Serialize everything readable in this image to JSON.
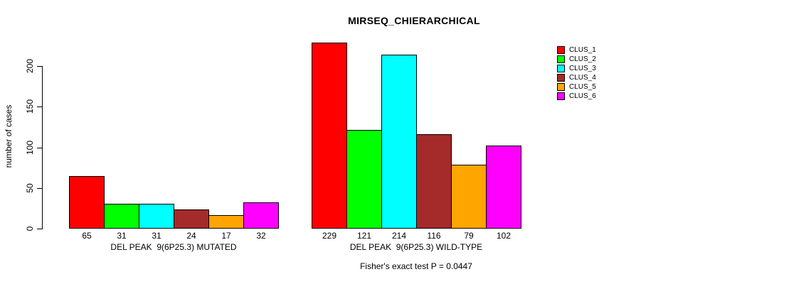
{
  "title": "MIRSEQ_CHIERARCHICAL",
  "colors": {
    "background": "#FFFFFF",
    "axis": "#000000",
    "clus_1": "#FF0000",
    "clus_2": "#00FF00",
    "clus_3": "#00FFFF",
    "clus_4": "#A52A2A",
    "clus_5": "#FFA500",
    "clus_6": "#FF00FF"
  },
  "chart_data": {
    "type": "bar",
    "title": "MIRSEQ_CHIERARCHICAL",
    "xlabel": "",
    "ylabel": "number of cases",
    "ylim": [
      0,
      230
    ],
    "yticks": [
      0,
      50,
      100,
      150,
      200
    ],
    "grid": false,
    "legend_position": "right-outside-top",
    "bar_value_labels_shown": true,
    "series": [
      {
        "name": "CLUS_1",
        "color": "#FF0000"
      },
      {
        "name": "CLUS_2",
        "color": "#00FF00"
      },
      {
        "name": "CLUS_3",
        "color": "#00FFFF"
      },
      {
        "name": "CLUS_4",
        "color": "#A52A2A"
      },
      {
        "name": "CLUS_5",
        "color": "#FFA500"
      },
      {
        "name": "CLUS_6",
        "color": "#FF00FF"
      }
    ],
    "groups": [
      {
        "label": "DEL PEAK  9(6P25.3) MUTATED",
        "values": [
          65,
          31,
          31,
          24,
          17,
          32
        ]
      },
      {
        "label": "DEL PEAK  9(6P25.3) WILD-TYPE",
        "values": [
          229,
          121,
          214,
          116,
          79,
          102
        ]
      }
    ],
    "annotation": "Fisher's exact test P = 0.0447"
  }
}
